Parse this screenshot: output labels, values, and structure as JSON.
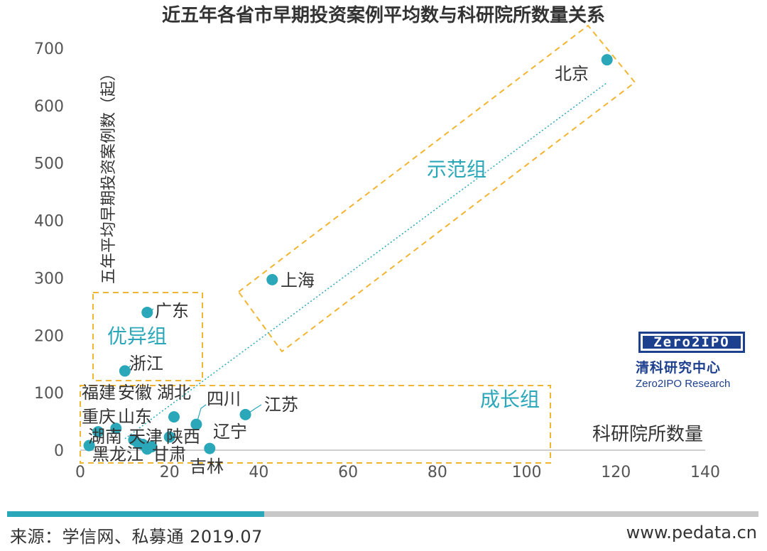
{
  "chart_data": {
    "type": "scatter",
    "title": "近五年各省市早期投资案例平均数与科研院所数量关系",
    "xlabel": "科研院所数量",
    "ylabel": "五年平均早期投资案例数（起）",
    "xlim": [
      0,
      140
    ],
    "ylim": [
      0,
      700
    ],
    "x_ticks": [
      "0",
      "20",
      "40",
      "60",
      "80",
      "100",
      "120",
      "140"
    ],
    "y_ticks": [
      "0",
      "100",
      "200",
      "300",
      "400",
      "500",
      "600",
      "700"
    ],
    "grid": false,
    "trendline": {
      "style": "dotted",
      "from": [
        10,
        20
      ],
      "to": [
        118,
        640
      ]
    },
    "points": [
      {
        "name": "北京",
        "x": 118,
        "y": 680
      },
      {
        "name": "上海",
        "x": 43,
        "y": 297
      },
      {
        "name": "广东",
        "x": 15,
        "y": 240
      },
      {
        "name": "浙江",
        "x": 10,
        "y": 138
      },
      {
        "name": "湖北",
        "x": 21,
        "y": 58
      },
      {
        "name": "四川",
        "x": 26,
        "y": 45
      },
      {
        "name": "江苏",
        "x": 37,
        "y": 62
      },
      {
        "name": "辽宁",
        "x": 29,
        "y": 3
      },
      {
        "name": "陕西",
        "x": 20,
        "y": 23
      },
      {
        "name": "福建",
        "x": 4,
        "y": 32
      },
      {
        "name": "安徽",
        "x": 8,
        "y": 38
      },
      {
        "name": "重庆",
        "x": 2,
        "y": 8
      },
      {
        "name": "山东",
        "x": 14,
        "y": 10
      },
      {
        "name": "湖南",
        "x": 12,
        "y": 18
      },
      {
        "name": "天津",
        "x": 13,
        "y": 12
      },
      {
        "name": "黑龙江",
        "x": 15,
        "y": 4
      },
      {
        "name": "甘肃",
        "x": 16,
        "y": 6
      },
      {
        "name": "吉林",
        "x": 15,
        "y": 2
      }
    ],
    "groups": [
      {
        "name": "示范组",
        "color": "#2aa7b8"
      },
      {
        "name": "优异组",
        "color": "#2aa7b8"
      },
      {
        "name": "成长组",
        "color": "#2aa7b8"
      }
    ],
    "point_color": "#2aa7b8",
    "box_color": "#f1b532"
  },
  "logo": {
    "name": "Zero2IPO",
    "cn": "清科研究中心",
    "en": "Zero2IPO Research"
  },
  "footer": {
    "source": "来源：学信网、私募通 2019.07",
    "url": "www.pedata.cn"
  }
}
